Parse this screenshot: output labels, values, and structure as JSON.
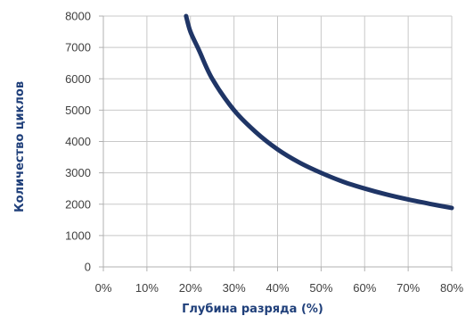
{
  "chart_data": {
    "type": "line",
    "title": "",
    "xlabel": "Глубина разряда (%)",
    "ylabel": "Количество циклов",
    "xlim": [
      0,
      80
    ],
    "ylim": [
      0,
      8000
    ],
    "x_ticks": [
      0,
      10,
      20,
      30,
      40,
      50,
      60,
      70,
      80
    ],
    "x_tick_labels": [
      "0%",
      "10%",
      "20%",
      "30%",
      "40%",
      "50%",
      "60%",
      "70%",
      "80%"
    ],
    "y_ticks": [
      0,
      1000,
      2000,
      3000,
      4000,
      5000,
      6000,
      7000,
      8000
    ],
    "y_tick_labels": [
      "0",
      "1000",
      "2000",
      "3000",
      "4000",
      "5000",
      "6000",
      "7000",
      "8000"
    ],
    "grid": true,
    "legend": "none",
    "series": [
      {
        "color": "#1f3566",
        "x": [
          19,
          20,
          22,
          25,
          30,
          35,
          40,
          45,
          50,
          55,
          60,
          65,
          70,
          75,
          80
        ],
        "y": [
          8000,
          7500,
          6900,
          6000,
          5000,
          4300,
          3750,
          3330,
          3000,
          2720,
          2500,
          2310,
          2150,
          2010,
          1880
        ]
      }
    ]
  }
}
